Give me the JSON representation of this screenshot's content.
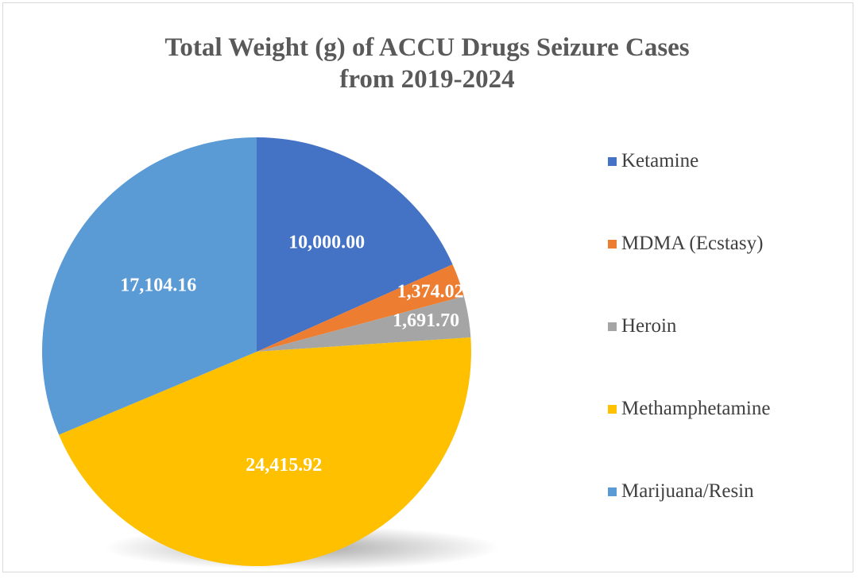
{
  "chart_data": {
    "type": "pie",
    "title": "Total Weight (g) of ACCU Drugs Seizure Cases from 2019-2024",
    "title_lines": [
      "Total Weight (g) of ACCU Drugs Seizure Cases",
      "from 2019-2024"
    ],
    "categories": [
      "Ketamine",
      "MDMA (Ecstasy)",
      "Heroin",
      "Methamphetamine",
      "Marijuana/Resin"
    ],
    "values": [
      10000.0,
      1374.02,
      1691.7,
      24415.92,
      17104.16
    ],
    "value_labels": [
      "10,000.00",
      "1,374.02",
      "1,691.70",
      "24,415.92",
      "17,104.16"
    ],
    "colors": [
      "#4472c4",
      "#ed7d31",
      "#a5a5a5",
      "#ffc000",
      "#5b9bd5"
    ],
    "legend_position": "right"
  }
}
